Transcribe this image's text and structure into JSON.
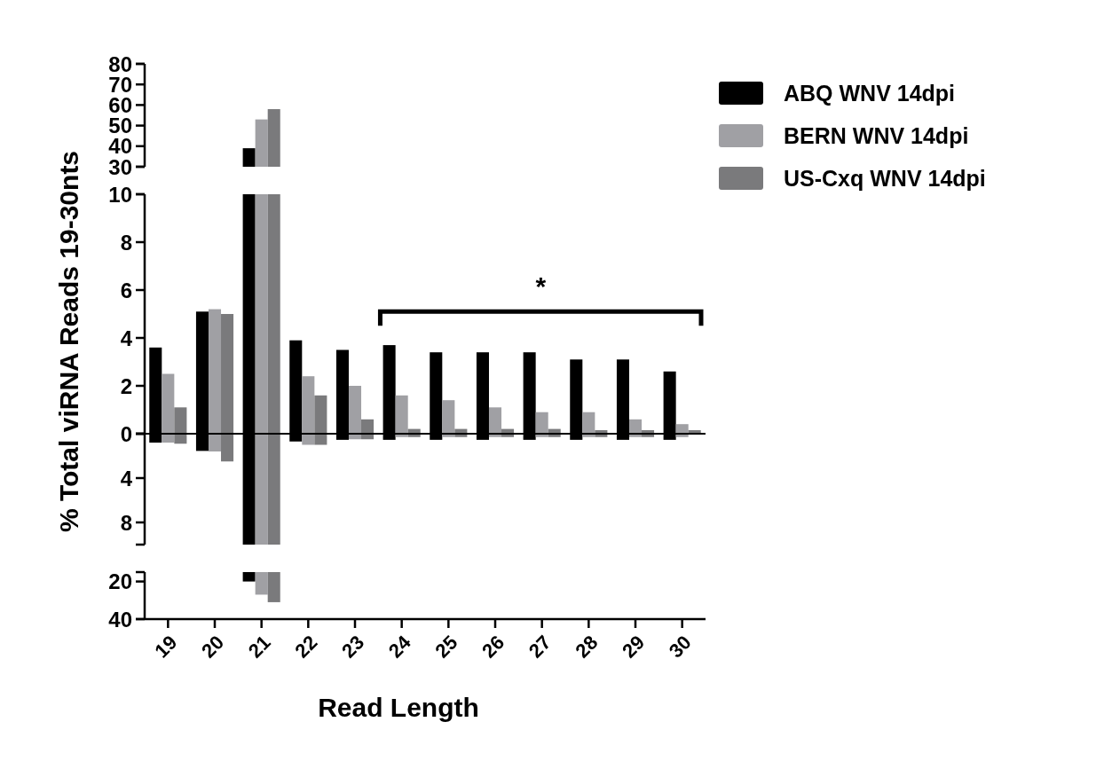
{
  "chart_data": [
    {
      "type": "bar",
      "categories": [
        "19",
        "20",
        "21",
        "22",
        "23",
        "24",
        "25",
        "26",
        "27",
        "28",
        "29",
        "30"
      ],
      "ylim": [
        30,
        80
      ],
      "yticks": [
        30,
        40,
        50,
        60,
        70,
        80
      ],
      "tick_labels": "y",
      "legend": "right",
      "series": [
        {
          "name": "ABQ WNV 14dpi",
          "color": "#000000",
          "values": [
            null,
            null,
            39,
            null,
            null,
            null,
            null,
            null,
            null,
            null,
            null,
            null
          ]
        },
        {
          "name": "BERN WNV 14dpi",
          "color": "#a0a0a4",
          "values": [
            null,
            null,
            53,
            null,
            null,
            null,
            null,
            null,
            null,
            null,
            null,
            null
          ]
        },
        {
          "name": "US-Cxq WNV 14dpi",
          "color": "#7a7a7c",
          "values": [
            null,
            null,
            58,
            null,
            null,
            null,
            null,
            null,
            null,
            null,
            null,
            null
          ]
        }
      ]
    },
    {
      "type": "bar",
      "categories": [
        "19",
        "20",
        "21",
        "22",
        "23",
        "24",
        "25",
        "26",
        "27",
        "28",
        "29",
        "30"
      ],
      "ylim": [
        0,
        10
      ],
      "yticks": [
        0,
        2,
        4,
        6,
        8,
        10
      ],
      "tick_labels": "y",
      "ylabel": "% Total viRNA Reads 19-30nts",
      "annotations": [
        "*"
      ],
      "series": [
        {
          "color": "#000000",
          "values": [
            3.6,
            5.1,
            10,
            3.9,
            3.5,
            3.7,
            3.4,
            3.4,
            3.4,
            3.1,
            3.1,
            2.6
          ]
        },
        {
          "color": "#a0a0a4",
          "values": [
            2.5,
            5.2,
            10,
            2.4,
            2.0,
            1.6,
            1.4,
            1.1,
            0.9,
            0.9,
            0.6,
            0.4
          ]
        },
        {
          "color": "#7a7a7c",
          "values": [
            1.1,
            5.0,
            10,
            1.6,
            0.6,
            0.2,
            0.2,
            0.2,
            0.2,
            0.15,
            0.15,
            0.15
          ]
        }
      ]
    },
    {
      "type": "bar",
      "categories": [
        "19",
        "20",
        "21",
        "22",
        "23",
        "24",
        "25",
        "26",
        "27",
        "28",
        "29",
        "30"
      ],
      "ylim": [
        -10,
        0
      ],
      "yticks": [
        {
          "value": -8,
          "label": "8"
        },
        {
          "value": -4,
          "label": "4"
        }
      ],
      "tick_labels": "y",
      "series": [
        {
          "color": "#000000",
          "values": [
            -0.8,
            -1.55,
            -10,
            -0.7,
            -0.55,
            -0.55,
            -0.55,
            -0.55,
            -0.55,
            -0.55,
            -0.55,
            -0.55
          ]
        },
        {
          "color": "#a0a0a4",
          "values": [
            -0.8,
            -1.6,
            -10,
            -1.0,
            -0.5,
            -0.3,
            -0.3,
            -0.3,
            -0.3,
            -0.3,
            -0.3,
            -0.3
          ]
        },
        {
          "color": "#7a7a7c",
          "values": [
            -0.9,
            -2.5,
            -10,
            -1.0,
            -0.5,
            -0.3,
            -0.3,
            -0.3,
            -0.3,
            -0.3,
            -0.3,
            null
          ]
        }
      ]
    },
    {
      "type": "bar",
      "categories": [
        "19",
        "20",
        "21",
        "22",
        "23",
        "24",
        "25",
        "26",
        "27",
        "28",
        "29",
        "30"
      ],
      "ylim": [
        -40,
        -15
      ],
      "yticks": [
        {
          "value": -40,
          "label": "40"
        },
        {
          "value": -20,
          "label": "20"
        }
      ],
      "xlabel": "Read Length",
      "series": [
        {
          "color": "#000000",
          "values": [
            null,
            null,
            -20,
            null,
            null,
            null,
            null,
            null,
            null,
            null,
            null,
            null
          ]
        },
        {
          "color": "#a0a0a4",
          "values": [
            null,
            null,
            -27,
            null,
            null,
            null,
            null,
            null,
            null,
            null,
            null,
            null
          ]
        },
        {
          "color": "#7a7a7c",
          "values": [
            null,
            null,
            -31,
            null,
            null,
            null,
            null,
            null,
            null,
            null,
            null,
            null
          ]
        }
      ]
    }
  ]
}
